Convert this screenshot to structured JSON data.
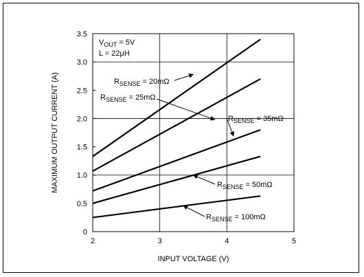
{
  "chart_data": {
    "type": "line",
    "title": "",
    "xlabel": "INPUT VOLTAGE (V)",
    "ylabel": "MAXIMUM OUTPUT CURRENT (A)",
    "xlim": [
      2,
      5
    ],
    "ylim": [
      0,
      3.5
    ],
    "xticks": [
      "2",
      "3",
      "4",
      "5"
    ],
    "yticks": [
      "0",
      "0.5",
      "1.0",
      "1.5",
      "2.0",
      "2.5",
      "3.0",
      "3.5"
    ],
    "grid": true,
    "conditions": [
      {
        "main": "V",
        "sub": "OUT",
        "rest": " = 5V"
      },
      {
        "main": "L = 22",
        "sub": "",
        "rest": "μH"
      }
    ],
    "series": [
      {
        "name": "RSENSE = 20mΩ",
        "label_main": "R",
        "label_sub": "SENSE",
        "label_rest": " = 20mΩ",
        "x": [
          2,
          4.5
        ],
        "y": [
          1.33,
          3.4
        ]
      },
      {
        "name": "RSENSE = 25mΩ",
        "label_main": "R",
        "label_sub": "SENSE",
        "label_rest": " = 25mΩ",
        "x": [
          2,
          4.5
        ],
        "y": [
          1.07,
          2.7
        ]
      },
      {
        "name": "RSENSE = 35mΩ",
        "label_main": "R",
        "label_sub": "SENSE",
        "label_rest": " = 35mΩ",
        "x": [
          2,
          4.5
        ],
        "y": [
          0.72,
          1.8
        ]
      },
      {
        "name": "RSENSE = 50mΩ",
        "label_main": "R",
        "label_sub": "SENSE",
        "label_rest": " = 50mΩ",
        "x": [
          2,
          4.5
        ],
        "y": [
          0.5,
          1.33
        ]
      },
      {
        "name": "RSENSE = 100mΩ",
        "label_main": "R",
        "label_sub": "SENSE",
        "label_rest": " = 100mΩ",
        "x": [
          2,
          4.5
        ],
        "y": [
          0.25,
          0.63
        ]
      }
    ],
    "arrows": [
      {
        "series": 0,
        "x": 3.5,
        "y": 2.78
      },
      {
        "series": 1,
        "x": 3.82,
        "y": 1.98
      },
      {
        "series": 2,
        "x": 4.1,
        "y": 1.69
      },
      {
        "series": 3,
        "x": 3.5,
        "y": 1.0
      },
      {
        "series": 4,
        "x": 3.35,
        "y": 0.46
      }
    ]
  }
}
